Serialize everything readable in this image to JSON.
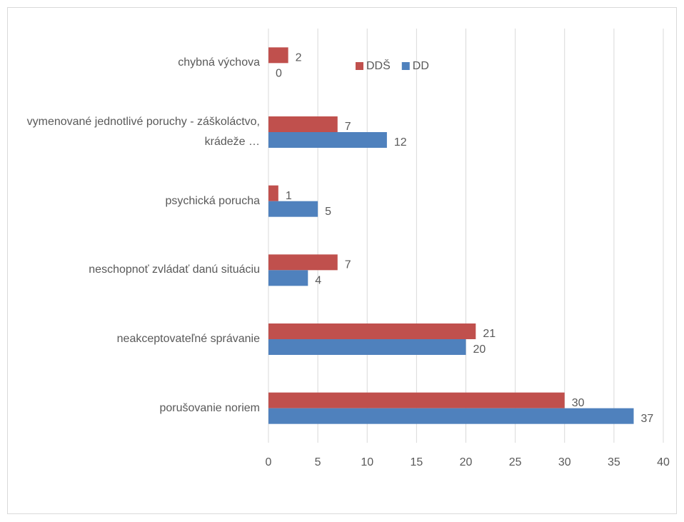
{
  "chart_data": {
    "type": "hbar",
    "categories": [
      "chybná výchova",
      "vymenované jednotlivé poruchy - záškoláctvo, krádeže …",
      "psychická porucha",
      "neschopnoť zvládať danú situáciu",
      "neakceptovateľné správanie",
      "porušovanie noriem"
    ],
    "series": [
      {
        "name": "DDŠ",
        "color": "#c0504d",
        "values": [
          2,
          7,
          1,
          7,
          21,
          30
        ]
      },
      {
        "name": "DD",
        "color": "#4f81bd",
        "values": [
          0,
          12,
          5,
          4,
          20,
          37
        ]
      }
    ],
    "xlim": [
      0,
      40
    ],
    "xticks": [
      0,
      5,
      10,
      15,
      20,
      25,
      30,
      35,
      40
    ],
    "grid": true,
    "legend": "top"
  }
}
